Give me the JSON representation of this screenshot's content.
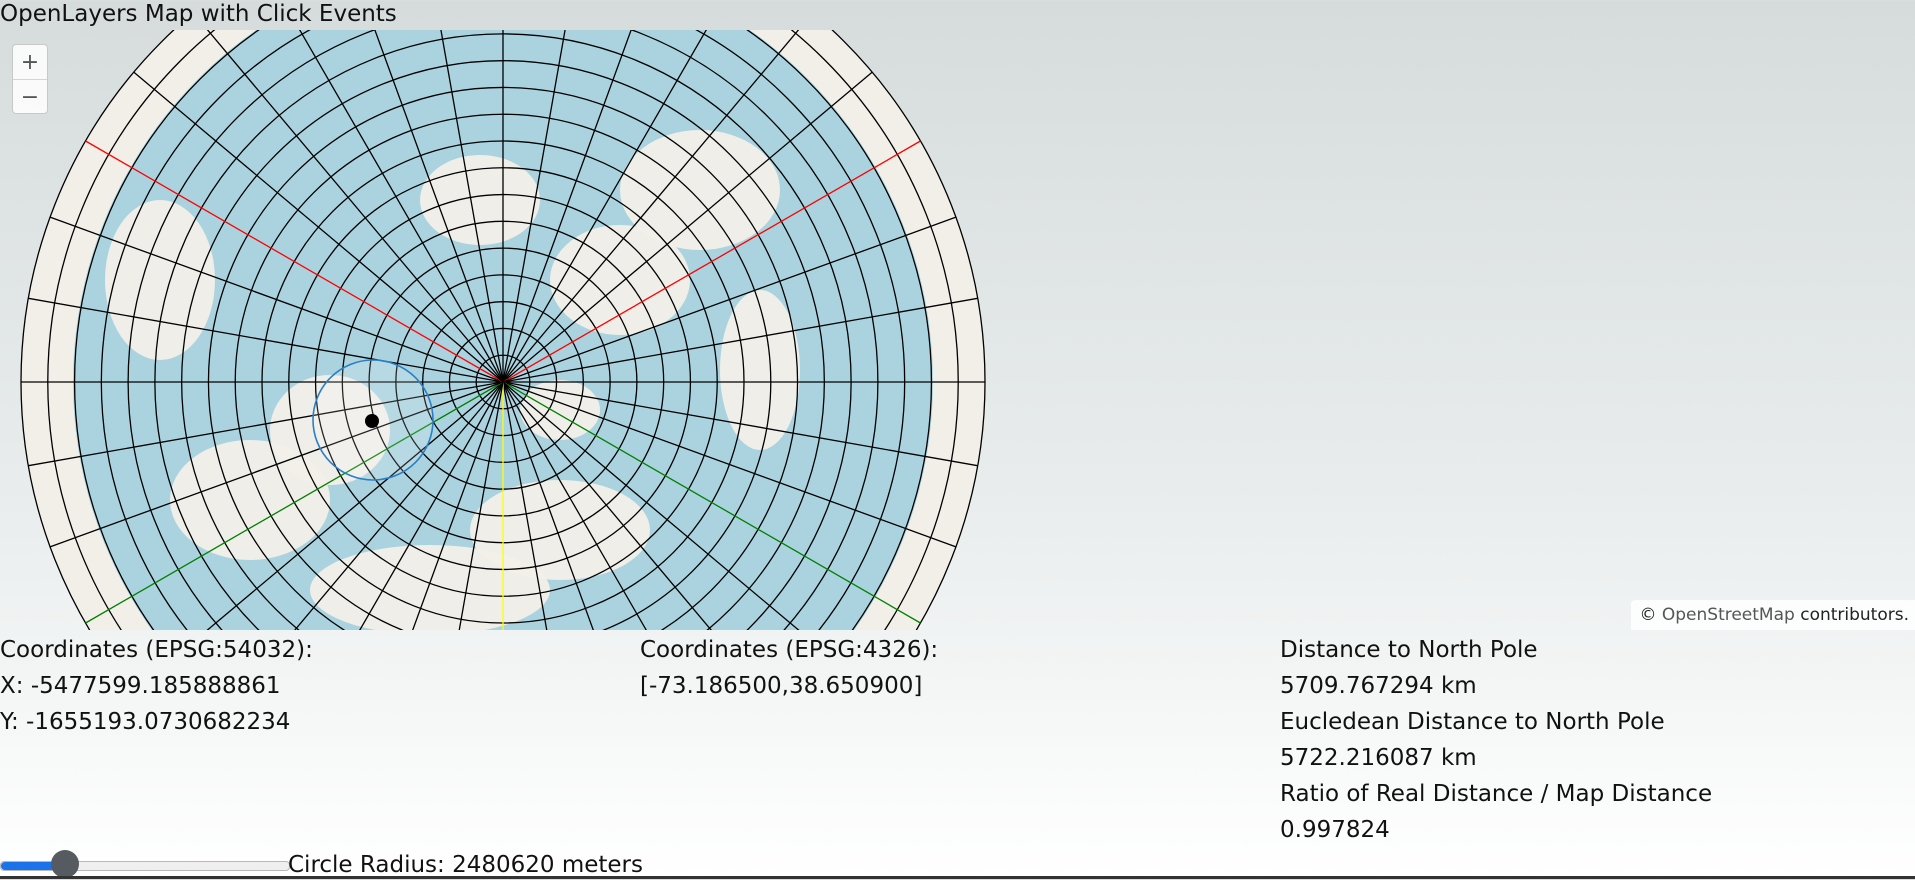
{
  "page": {
    "title": "OpenLayers Map with Click Events"
  },
  "map": {
    "zoom_in_label": "+",
    "zoom_out_label": "−",
    "attribution": {
      "symbol": "©",
      "link_text": "OpenStreetMap",
      "suffix": " contributors."
    },
    "colors": {
      "ocean": "#aad3df",
      "land": "#f2efe9",
      "graticule": "#000000",
      "meridian_red": "#ff0000",
      "meridian_green": "#008000",
      "meridian_yellow": "#ffff00",
      "circle": "#2a7fc4",
      "marker": "#000000"
    },
    "icons": {
      "zoom_in": "plus-icon",
      "zoom_out": "minus-icon",
      "marker": "click-marker-dot"
    }
  },
  "info": {
    "projected": {
      "label": "Coordinates (EPSG:54032):",
      "x": "X: -5477599.185888861",
      "y": "Y: -1655193.0730682234"
    },
    "geographic": {
      "label": "Coordinates (EPSG:4326):",
      "value": "[-73.186500,38.650900]"
    },
    "distance": {
      "label": "Distance to North Pole",
      "value": "5709.767294 km",
      "euclid_label": "Eucledean Distance to North Pole",
      "euclid_value": "5722.216087 km",
      "ratio_label": "Ratio of Real Distance / Map Distance",
      "ratio_value": "0.997824"
    }
  },
  "slider": {
    "value_fraction": 0.22,
    "label": "Circle Radius: 2480620 meters"
  }
}
